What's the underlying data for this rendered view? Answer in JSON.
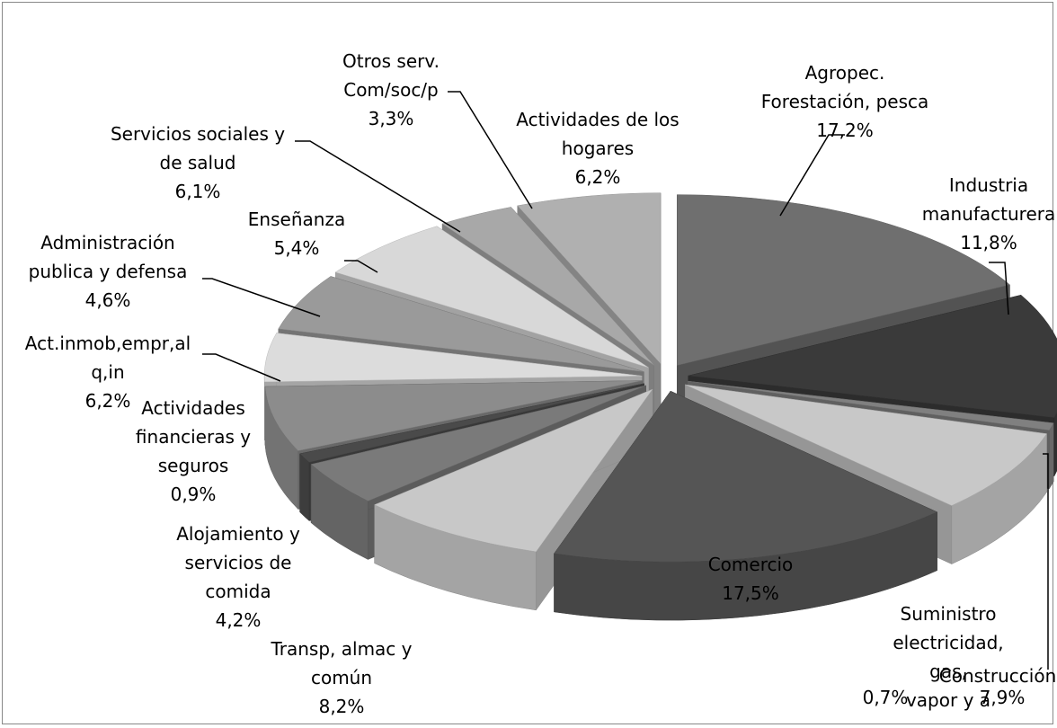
{
  "chart_data": {
    "type": "pie",
    "categories": [
      "Agropec.\nForestación, pesca",
      "Industria\nmanufacturera",
      "Suministro\nelectricidad, gas,\nvapor y a",
      "Construcción",
      "Comercio",
      "Transp, almac y\ncomún",
      "Alojamiento y\nservicios de\ncomida",
      "Actividades\nfinancieras y\nseguros",
      "Act.inmob,empr,al\nq,in",
      "Administración\npublica y defensa",
      "Enseñanza",
      "Servicios sociales y\nde salud",
      "Otros serv.\nCom/soc/p",
      "Actividades de los\nhogares"
    ],
    "values": [
      17.2,
      11.8,
      0.7,
      7.9,
      17.5,
      8.2,
      4.2,
      0.9,
      6.2,
      4.6,
      5.4,
      6.1,
      3.3,
      6.2
    ],
    "value_labels": [
      "17,2%",
      "11,8%",
      "0,7%",
      "7,9%",
      "17,5%",
      "8,2%",
      "4,2%",
      "0,9%",
      "6,2%",
      "4,6%",
      "5,4%",
      "6,1%",
      "3,3%",
      "6,2%"
    ],
    "colors": [
      "#6f6f6f",
      "#3a3a3a",
      "#808080",
      "#c8c8c8",
      "#555555",
      "#c8c8c8",
      "#7a7a7a",
      "#4a4a4a",
      "#8c8c8c",
      "#dcdcdc",
      "#9a9a9a",
      "#d8d8d8",
      "#a8a8a8",
      "#b0b0b0"
    ]
  }
}
